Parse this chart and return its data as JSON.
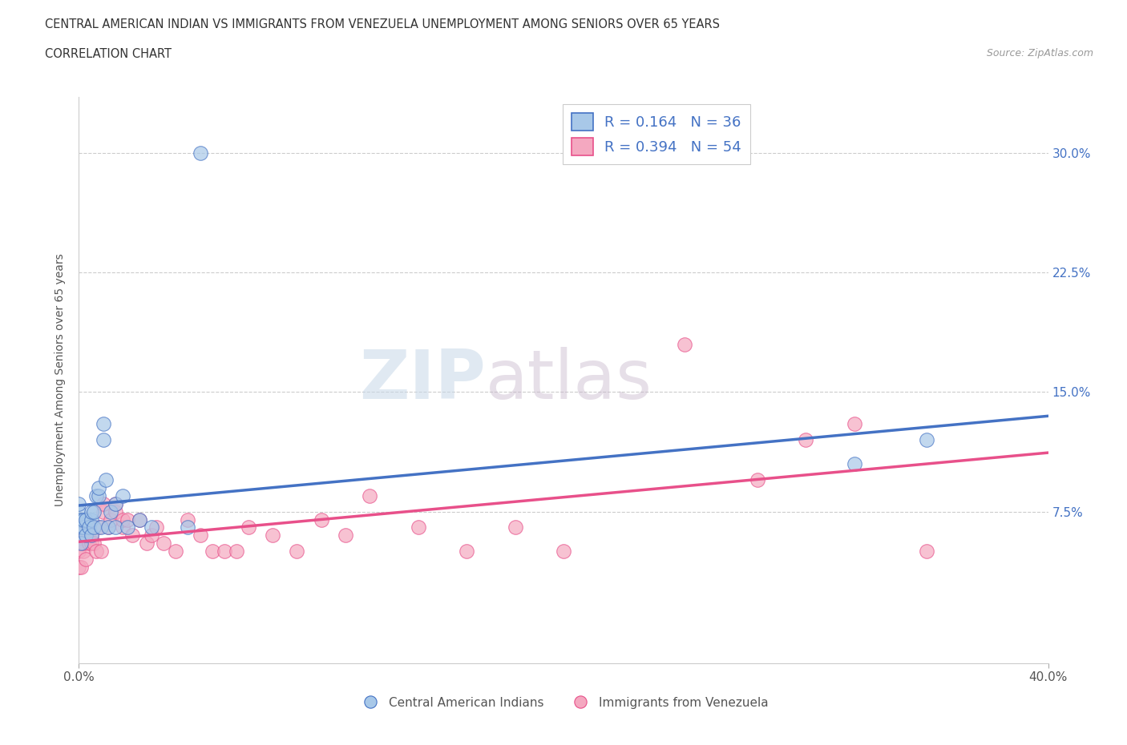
{
  "title_line1": "CENTRAL AMERICAN INDIAN VS IMMIGRANTS FROM VENEZUELA UNEMPLOYMENT AMONG SENIORS OVER 65 YEARS",
  "title_line2": "CORRELATION CHART",
  "source_text": "Source: ZipAtlas.com",
  "ylabel": "Unemployment Among Seniors over 65 years",
  "xlim": [
    0.0,
    0.4
  ],
  "ylim": [
    -0.02,
    0.335
  ],
  "ytick_vals": [
    0.075,
    0.15,
    0.225,
    0.3
  ],
  "ytick_labels": [
    "7.5%",
    "15.0%",
    "22.5%",
    "30.0%"
  ],
  "color_blue": "#a8c8e8",
  "color_pink": "#f4a8c0",
  "line_blue": "#4472c4",
  "line_pink": "#e8508a",
  "watermark_zip": "ZIP",
  "watermark_atlas": "atlas",
  "blue_x": [
    0.0,
    0.0,
    0.0,
    0.0,
    0.001,
    0.001,
    0.001,
    0.002,
    0.002,
    0.003,
    0.003,
    0.004,
    0.005,
    0.005,
    0.005,
    0.006,
    0.006,
    0.007,
    0.008,
    0.008,
    0.009,
    0.01,
    0.01,
    0.011,
    0.012,
    0.013,
    0.015,
    0.015,
    0.018,
    0.02,
    0.025,
    0.03,
    0.045,
    0.32,
    0.35,
    0.05
  ],
  "blue_y": [
    0.06,
    0.07,
    0.075,
    0.08,
    0.055,
    0.065,
    0.07,
    0.065,
    0.07,
    0.06,
    0.07,
    0.065,
    0.06,
    0.07,
    0.075,
    0.065,
    0.075,
    0.085,
    0.085,
    0.09,
    0.065,
    0.12,
    0.13,
    0.095,
    0.065,
    0.075,
    0.08,
    0.065,
    0.085,
    0.065,
    0.07,
    0.065,
    0.065,
    0.105,
    0.12,
    0.3
  ],
  "pink_x": [
    0.0,
    0.0,
    0.0,
    0.0,
    0.0,
    0.001,
    0.001,
    0.002,
    0.002,
    0.003,
    0.003,
    0.004,
    0.005,
    0.005,
    0.006,
    0.007,
    0.008,
    0.009,
    0.01,
    0.01,
    0.012,
    0.013,
    0.015,
    0.015,
    0.018,
    0.018,
    0.02,
    0.022,
    0.025,
    0.028,
    0.03,
    0.032,
    0.035,
    0.04,
    0.045,
    0.05,
    0.055,
    0.06,
    0.065,
    0.07,
    0.08,
    0.09,
    0.1,
    0.11,
    0.12,
    0.14,
    0.16,
    0.18,
    0.2,
    0.25,
    0.28,
    0.3,
    0.32,
    0.35
  ],
  "pink_y": [
    0.04,
    0.05,
    0.055,
    0.06,
    0.065,
    0.04,
    0.055,
    0.05,
    0.055,
    0.045,
    0.06,
    0.055,
    0.055,
    0.06,
    0.055,
    0.05,
    0.065,
    0.05,
    0.075,
    0.08,
    0.065,
    0.07,
    0.075,
    0.08,
    0.065,
    0.07,
    0.07,
    0.06,
    0.07,
    0.055,
    0.06,
    0.065,
    0.055,
    0.05,
    0.07,
    0.06,
    0.05,
    0.05,
    0.05,
    0.065,
    0.06,
    0.05,
    0.07,
    0.06,
    0.085,
    0.065,
    0.05,
    0.065,
    0.05,
    0.18,
    0.095,
    0.12,
    0.13,
    0.05
  ]
}
